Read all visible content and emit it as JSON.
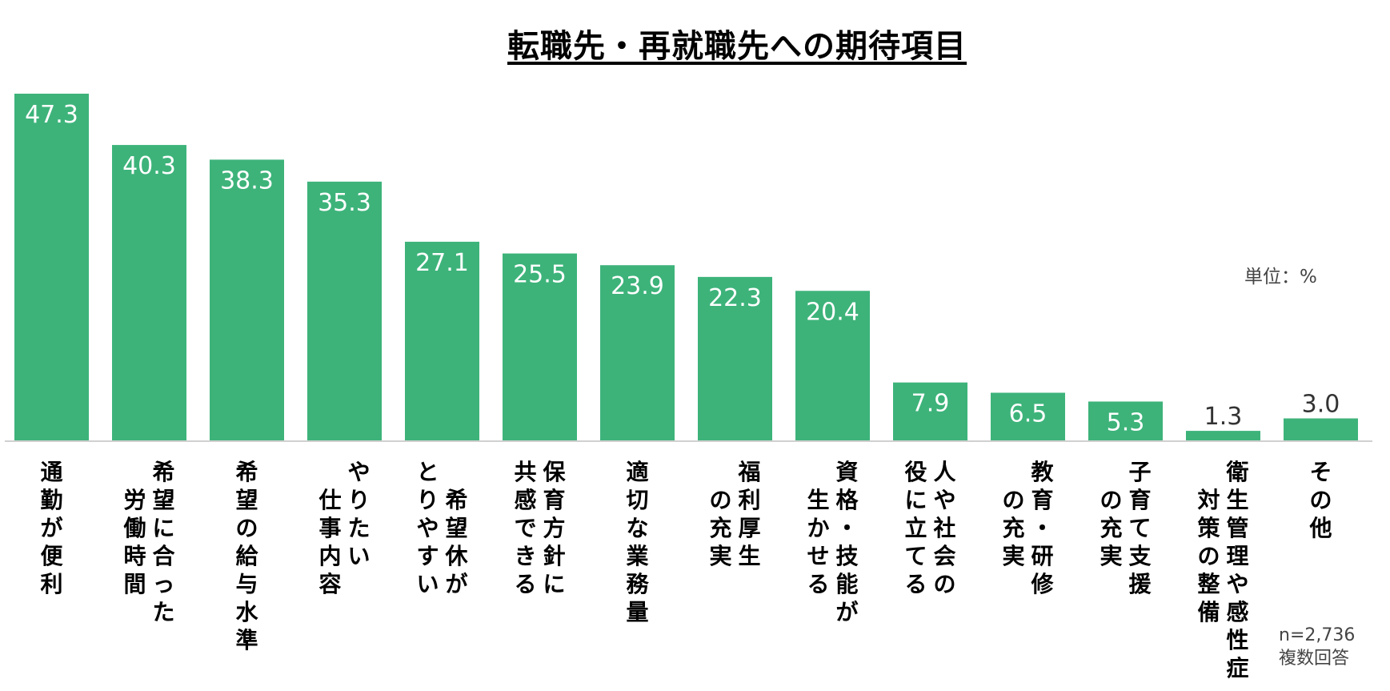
{
  "chart_data": {
    "type": "bar",
    "title": "転職先・再就職先への期待項目",
    "unit_label": "単位：%",
    "footnote": [
      "n=2,736",
      "複数回答"
    ],
    "categories": [
      "通勤が便利",
      "希望に合った労働時間",
      "希望の給与水準",
      "やりたい仕事内容",
      "希望休がとりやすい",
      "保育方針に共感できる",
      "適切な業務量",
      "福利厚生の充実",
      "資格・技能が生かせる",
      "人や社会の役に立てる",
      "教育・研修の充実",
      "子育て支援の充実",
      "衛生管理や感性症対策の整備",
      "その他"
    ],
    "category_columns": [
      [
        {
          "text": "通勤が便利",
          "offset": 0
        }
      ],
      [
        {
          "text": "希望に合った",
          "offset": 0
        },
        {
          "text": "労働時間",
          "offset": 1
        }
      ],
      [
        {
          "text": "希望の給与水準",
          "offset": 0
        }
      ],
      [
        {
          "text": "やりたい",
          "offset": 0
        },
        {
          "text": "仕事内容",
          "offset": 1
        }
      ],
      [
        {
          "text": "希望休が",
          "offset": 1
        },
        {
          "text": "とりやすい",
          "offset": 0
        }
      ],
      [
        {
          "text": "保育方針に",
          "offset": 0
        },
        {
          "text": "共感できる",
          "offset": 0
        }
      ],
      [
        {
          "text": "適切な業務量",
          "offset": 0
        }
      ],
      [
        {
          "text": "福利厚生",
          "offset": 0
        },
        {
          "text": "の充実",
          "offset": 1
        }
      ],
      [
        {
          "text": "資格・技能が",
          "offset": 0
        },
        {
          "text": "生かせる",
          "offset": 1
        }
      ],
      [
        {
          "text": "人や社会の",
          "offset": 0
        },
        {
          "text": "役に立てる",
          "offset": 0
        }
      ],
      [
        {
          "text": "教育・研修",
          "offset": 0
        },
        {
          "text": "の充実",
          "offset": 1
        }
      ],
      [
        {
          "text": "子育て支援",
          "offset": 0
        },
        {
          "text": "の充実",
          "offset": 1
        }
      ],
      [
        {
          "text": "衛生管理や感性症",
          "offset": 0
        },
        {
          "text": "対策の整備",
          "offset": 1
        }
      ],
      [
        {
          "text": "その他",
          "offset": 0
        }
      ]
    ],
    "values": [
      47.3,
      40.3,
      38.3,
      35.3,
      27.1,
      25.5,
      23.9,
      22.3,
      20.4,
      7.9,
      6.5,
      5.3,
      1.3,
      3.0
    ],
    "value_labels": [
      "47.3",
      "40.3",
      "38.3",
      "35.3",
      "27.1",
      "25.5",
      "23.9",
      "22.3",
      "20.4",
      "7.9",
      "6.5",
      "5.3",
      "1.3",
      "3.0"
    ],
    "ylim": [
      0,
      50
    ],
    "xlabel": "",
    "ylabel": "",
    "bar_color": "#3db37a",
    "grid": false,
    "legend": "none"
  }
}
